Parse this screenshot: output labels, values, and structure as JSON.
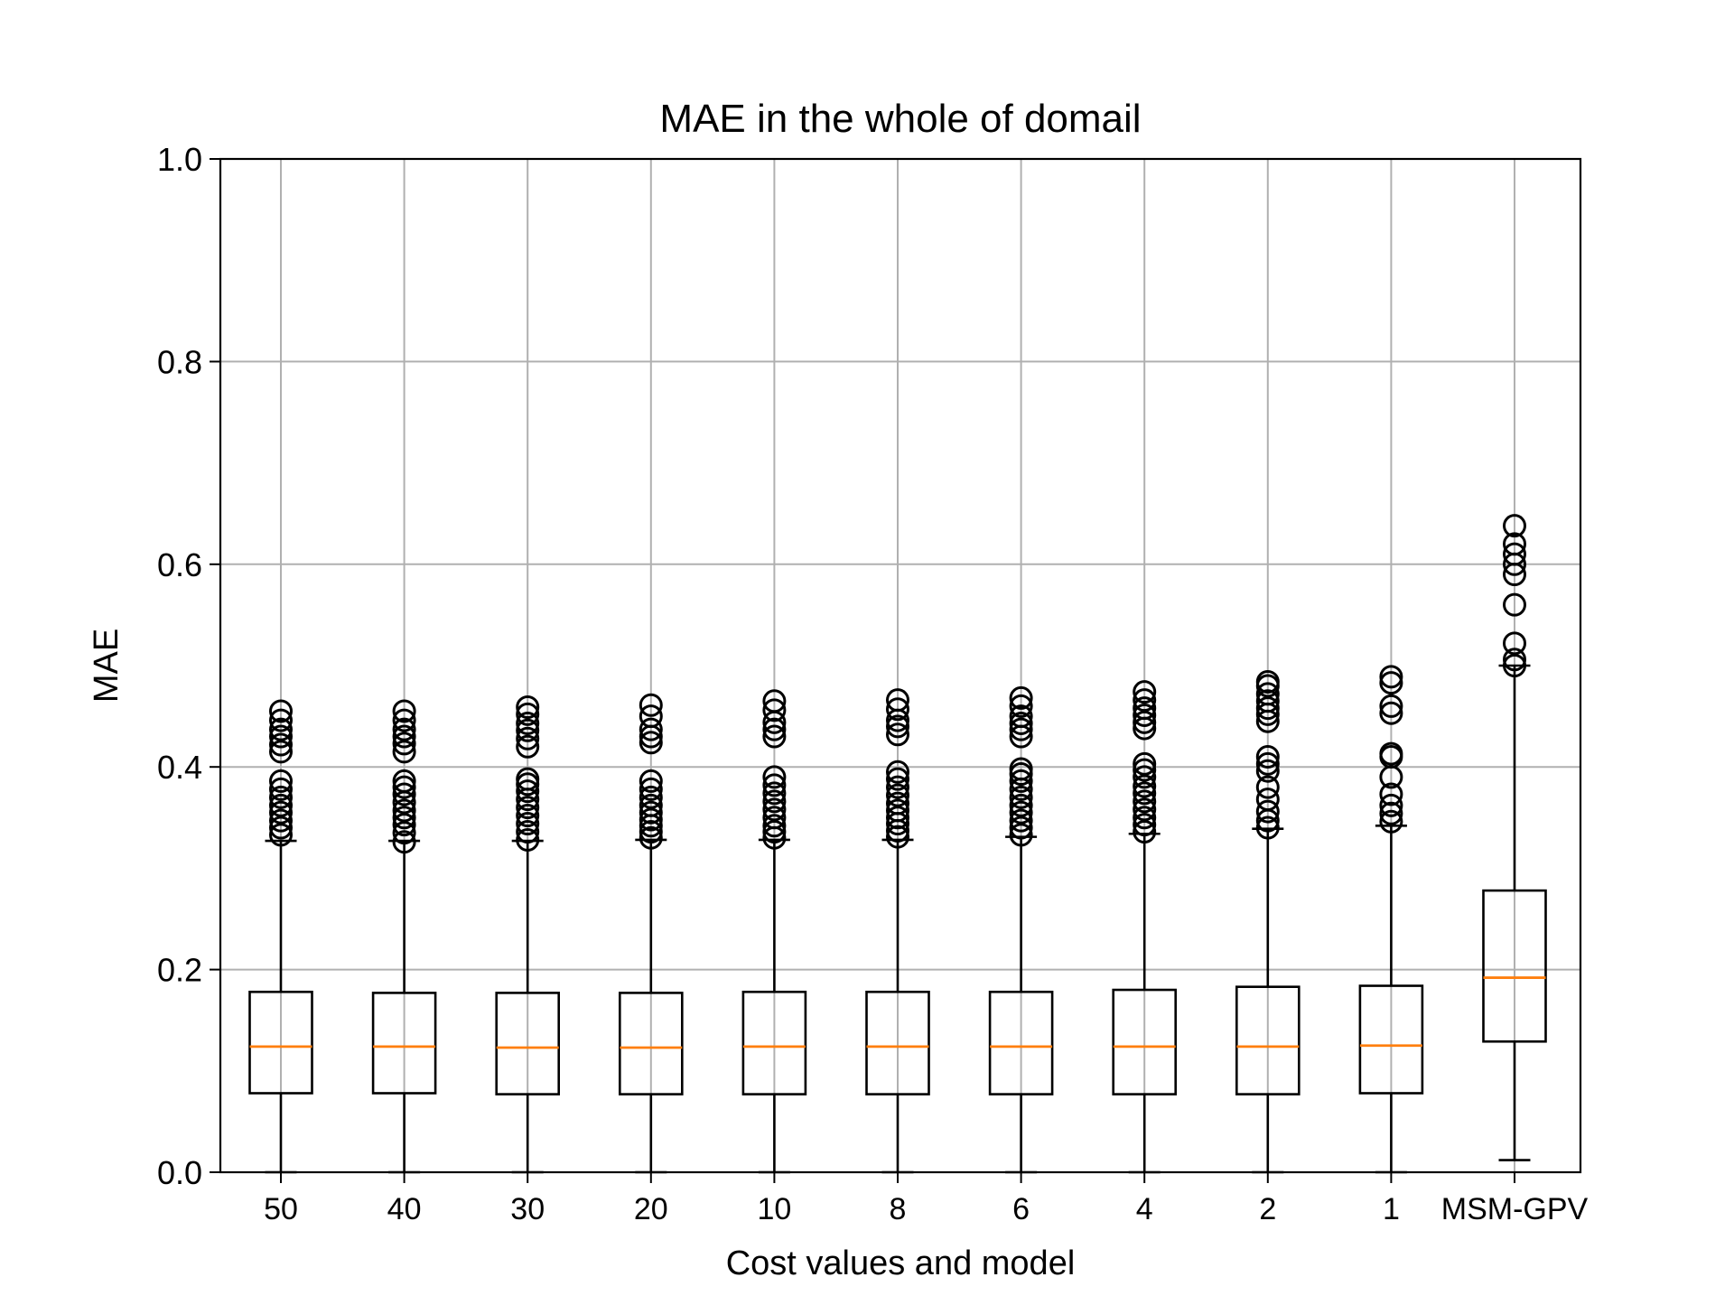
{
  "chart_data": {
    "type": "boxplot",
    "title": "MAE in the whole of domail",
    "xlabel": "Cost values and model",
    "ylabel": "MAE",
    "ylim": [
      0.0,
      1.0
    ],
    "yticks": [
      "0.0",
      "0.2",
      "0.4",
      "0.6",
      "0.8",
      "1.0"
    ],
    "grid": true,
    "categories": [
      "50",
      "40",
      "30",
      "20",
      "10",
      "8",
      "6",
      "4",
      "2",
      "1",
      "MSM-GPV"
    ],
    "colors": {
      "box": "#000000",
      "median": "#ff7f0e",
      "grid": "#b0b0b0",
      "flier": "#000000"
    },
    "series": [
      {
        "category": "50",
        "whisker_low": 0.0,
        "q1": 0.078,
        "median": 0.124,
        "q3": 0.178,
        "whisker_high": 0.327,
        "fliers": [
          0.333,
          0.34,
          0.347,
          0.355,
          0.362,
          0.37,
          0.378,
          0.386,
          0.415,
          0.422,
          0.43,
          0.437,
          0.446,
          0.455
        ]
      },
      {
        "category": "40",
        "whisker_low": 0.0,
        "q1": 0.078,
        "median": 0.124,
        "q3": 0.177,
        "whisker_high": 0.327,
        "fliers": [
          0.326,
          0.335,
          0.343,
          0.35,
          0.357,
          0.365,
          0.373,
          0.38,
          0.386,
          0.415,
          0.423,
          0.43,
          0.437,
          0.446,
          0.455
        ]
      },
      {
        "category": "30",
        "whisker_low": 0.0,
        "q1": 0.077,
        "median": 0.123,
        "q3": 0.177,
        "whisker_high": 0.327,
        "fliers": [
          0.328,
          0.336,
          0.344,
          0.352,
          0.36,
          0.368,
          0.376,
          0.383,
          0.388,
          0.42,
          0.428,
          0.436,
          0.443,
          0.452,
          0.459
        ]
      },
      {
        "category": "20",
        "whisker_low": 0.0,
        "q1": 0.077,
        "median": 0.123,
        "q3": 0.177,
        "whisker_high": 0.328,
        "fliers": [
          0.33,
          0.336,
          0.342,
          0.348,
          0.355,
          0.362,
          0.37,
          0.378,
          0.386,
          0.424,
          0.43,
          0.437,
          0.45,
          0.461
        ]
      },
      {
        "category": "10",
        "whisker_low": 0.0,
        "q1": 0.077,
        "median": 0.124,
        "q3": 0.178,
        "whisker_high": 0.328,
        "fliers": [
          0.33,
          0.336,
          0.342,
          0.35,
          0.358,
          0.366,
          0.374,
          0.382,
          0.39,
          0.43,
          0.437,
          0.444,
          0.456,
          0.465
        ]
      },
      {
        "category": "8",
        "whisker_low": 0.0,
        "q1": 0.077,
        "median": 0.124,
        "q3": 0.178,
        "whisker_high": 0.328,
        "fliers": [
          0.331,
          0.337,
          0.344,
          0.35,
          0.357,
          0.364,
          0.372,
          0.38,
          0.388,
          0.395,
          0.432,
          0.44,
          0.446,
          0.457,
          0.466
        ]
      },
      {
        "category": "6",
        "whisker_low": 0.0,
        "q1": 0.077,
        "median": 0.124,
        "q3": 0.178,
        "whisker_high": 0.331,
        "fliers": [
          0.333,
          0.34,
          0.347,
          0.355,
          0.362,
          0.37,
          0.378,
          0.386,
          0.393,
          0.398,
          0.43,
          0.437,
          0.443,
          0.45,
          0.46,
          0.468
        ]
      },
      {
        "category": "4",
        "whisker_low": 0.0,
        "q1": 0.077,
        "median": 0.124,
        "q3": 0.18,
        "whisker_high": 0.334,
        "fliers": [
          0.336,
          0.343,
          0.35,
          0.358,
          0.366,
          0.374,
          0.381,
          0.39,
          0.397,
          0.403,
          0.438,
          0.444,
          0.451,
          0.458,
          0.466,
          0.474
        ]
      },
      {
        "category": "2",
        "whisker_low": 0.0,
        "q1": 0.077,
        "median": 0.124,
        "q3": 0.183,
        "whisker_high": 0.339,
        "fliers": [
          0.34,
          0.347,
          0.356,
          0.368,
          0.38,
          0.396,
          0.403,
          0.41,
          0.445,
          0.452,
          0.458,
          0.465,
          0.472,
          0.48,
          0.484
        ]
      },
      {
        "category": "1",
        "whisker_low": 0.0,
        "q1": 0.078,
        "median": 0.125,
        "q3": 0.184,
        "whisker_high": 0.342,
        "fliers": [
          0.346,
          0.354,
          0.362,
          0.373,
          0.39,
          0.41,
          0.413,
          0.453,
          0.46,
          0.483,
          0.489
        ]
      },
      {
        "category": "MSM-GPV",
        "whisker_low": 0.012,
        "q1": 0.129,
        "median": 0.192,
        "q3": 0.278,
        "whisker_high": 0.5,
        "fliers": [
          0.5,
          0.506,
          0.522,
          0.56,
          0.59,
          0.6,
          0.61,
          0.62,
          0.638
        ]
      }
    ]
  }
}
